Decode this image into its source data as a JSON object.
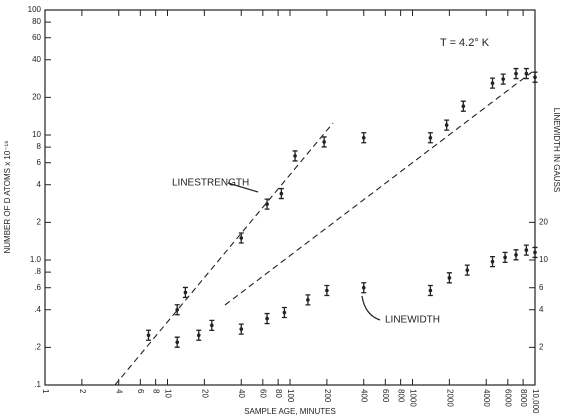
{
  "chart_data": {
    "type": "scatter",
    "annotation": "T = 4.2° K",
    "xlabel": "SAMPLE AGE, MINUTES",
    "ylabel": "NUMBER OF D ATOMS x 10⁻¹⁶",
    "y2label": "LINEWIDTH IN GAUSS",
    "xscale": "log",
    "yscale": "log",
    "y2scale": "log",
    "xlim": [
      1,
      10000
    ],
    "ylim": [
      0.1,
      100
    ],
    "y2lim": [
      1,
      1000
    ],
    "xticks": [
      1,
      2,
      4,
      6,
      8,
      10,
      20,
      40,
      60,
      80,
      100,
      200,
      400,
      600,
      800,
      1000,
      2000,
      4000,
      6000,
      8000,
      {
        "value": 10000,
        "label": "10,000"
      }
    ],
    "yticks": [
      {
        "value": 0.1,
        "label": ".1"
      },
      {
        "value": 0.2,
        "label": ".2"
      },
      {
        "value": 0.4,
        "label": ".4"
      },
      {
        "value": 0.6,
        "label": ".6"
      },
      {
        "value": 0.8,
        "label": ".8"
      },
      {
        "value": 1,
        "label": "1.0"
      },
      2,
      4,
      6,
      8,
      10,
      20,
      40,
      60,
      80,
      100
    ],
    "y2ticks": [
      2,
      4,
      6,
      10,
      20
    ],
    "series": [
      {
        "name": "LINESTRENGTH",
        "color": "#222",
        "x": [
          7,
          12,
          14,
          40,
          65,
          85,
          110,
          190,
          400,
          1400,
          1900,
          2600,
          4500,
          5500,
          7000,
          8500,
          10000
        ],
        "values": [
          0.25,
          0.4,
          0.55,
          1.5,
          2.8,
          3.4,
          6.8,
          8.8,
          9.5,
          9.5,
          12,
          17,
          26,
          28,
          31,
          31,
          29
        ]
      },
      {
        "name": "LINEWIDTH",
        "color": "#222",
        "axis": "y2",
        "x": [
          12,
          18,
          23,
          40,
          65,
          90,
          140,
          200,
          400,
          1400,
          2000,
          2800,
          4500,
          5700,
          7000,
          8500,
          10000
        ],
        "values": [
          2.2,
          2.5,
          3,
          2.8,
          3.4,
          3.8,
          4.8,
          5.7,
          6,
          5.7,
          7.2,
          8.3,
          9.7,
          10.5,
          11,
          12,
          11.5
        ]
      }
    ]
  }
}
